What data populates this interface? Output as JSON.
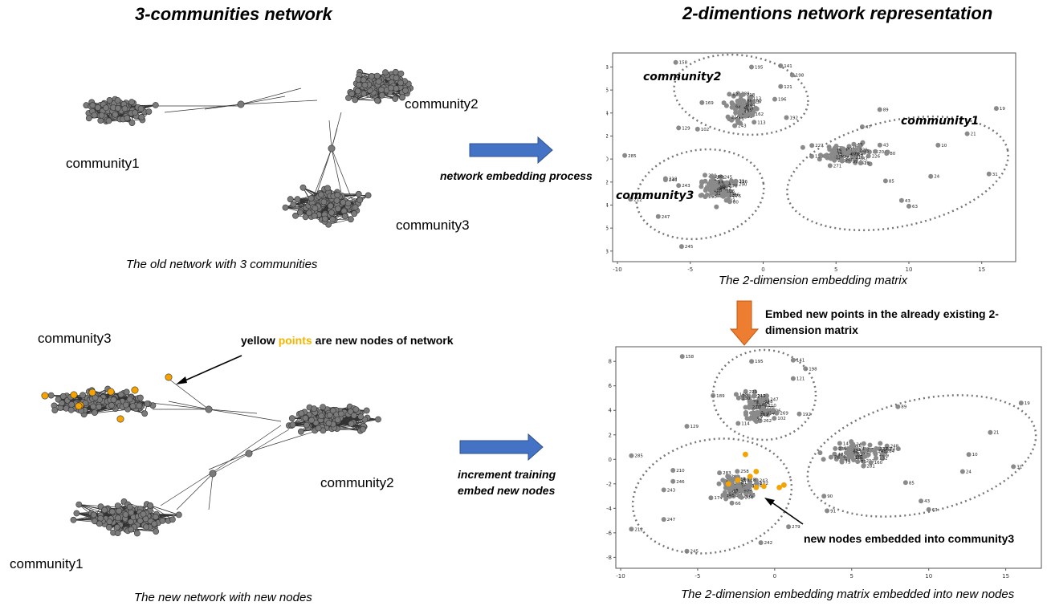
{
  "titles": {
    "left": "3-communities network",
    "right": "2-dimentions network representation"
  },
  "captions": {
    "old_network": "The old network with 3 communities",
    "embedding_matrix": "The 2-dimension embedding matrix",
    "new_network": "The new network with new nodes",
    "new_matrix": "The 2-dimension embedding matrix embedded into new nodes"
  },
  "graph_labels": {
    "top_c1": "community1",
    "top_c2": "community2",
    "top_c3": "community3",
    "bot_c1": "community1",
    "bot_c2": "community2",
    "bot_c3": "community3"
  },
  "plot_labels": {
    "top_c1": "community1",
    "top_c2": "community2",
    "top_c3": "community3"
  },
  "arrows": {
    "embedding": "network embedding process",
    "increment_1": "increment training",
    "increment_2": "embed new nodes",
    "down_1": "Embed new points in the already existing 2-",
    "down_2": "dimension matrix"
  },
  "annotations": {
    "yellow_pre": "yellow ",
    "yellow_word": "points",
    "yellow_post": " are new nodes of network",
    "new_embedded": "new nodes embedded into community3"
  },
  "colors": {
    "node": "#7a7a7a",
    "new_node": "#f4a300",
    "blue_arrow": "#4472c4",
    "orange_arrow": "#ed7d31"
  },
  "chart_data": [
    {
      "type": "scatter",
      "x_ticks": [
        "-10",
        "-5",
        "0",
        "5",
        "10",
        "15"
      ],
      "y_ticks": [
        "8",
        "6",
        "4",
        "2",
        "0",
        "-2",
        "-4",
        "-6",
        "-8"
      ],
      "xlim": [
        -10,
        17
      ],
      "ylim": [
        -8.5,
        8.8
      ],
      "point_labels": [
        {
          "t": "158",
          "x": -6,
          "y": 8.4
        },
        {
          "t": "141",
          "x": 1.2,
          "y": 8.1
        },
        {
          "t": "195",
          "x": -0.8,
          "y": 8
        },
        {
          "t": "198",
          "x": 2,
          "y": 7.3
        },
        {
          "t": "121",
          "x": 1.2,
          "y": 6.3
        },
        {
          "t": "196",
          "x": 0.8,
          "y": 5.2
        },
        {
          "t": "169",
          "x": -4.2,
          "y": 4.9
        },
        {
          "t": "192",
          "x": 1.6,
          "y": 3.6
        },
        {
          "t": "129",
          "x": -5.8,
          "y": 2.7
        },
        {
          "t": "102",
          "x": -4.5,
          "y": 2.6
        },
        {
          "t": "285",
          "x": -9.5,
          "y": 0.3
        },
        {
          "t": "210",
          "x": -6.7,
          "y": -1.7
        },
        {
          "t": "246",
          "x": -6.7,
          "y": -1.8
        },
        {
          "t": "243",
          "x": -5.8,
          "y": -2.3
        },
        {
          "t": "247",
          "x": -7.2,
          "y": -5
        },
        {
          "t": "245",
          "x": -5.6,
          "y": -7.6
        },
        {
          "t": "212",
          "x": -9.1,
          "y": -3.5
        },
        {
          "t": "19",
          "x": 16,
          "y": 4.4
        },
        {
          "t": "21",
          "x": 14,
          "y": 2.2
        },
        {
          "t": "31",
          "x": 15.5,
          "y": -1.3
        },
        {
          "t": "10",
          "x": 12,
          "y": 1.2
        },
        {
          "t": "24",
          "x": 11.5,
          "y": -1.5
        },
        {
          "t": "43",
          "x": 9.5,
          "y": -3.6
        },
        {
          "t": "63",
          "x": 10,
          "y": -4.1
        },
        {
          "t": "89",
          "x": 8,
          "y": 4.3
        },
        {
          "t": "47",
          "x": 6.8,
          "y": 2.8
        },
        {
          "t": "85",
          "x": 8.4,
          "y": -1.9
        }
      ]
    },
    {
      "type": "scatter",
      "x_ticks": [
        "-10",
        "-5",
        "0",
        "5",
        "10",
        "15"
      ],
      "y_ticks": [
        "8",
        "6",
        "4",
        "2",
        "0",
        "-2",
        "-4",
        "-6",
        "-8"
      ],
      "xlim": [
        -10,
        17
      ],
      "ylim": [
        -8.5,
        8.8
      ],
      "point_labels": [
        {
          "t": "158",
          "x": -6,
          "y": 8.4
        },
        {
          "t": "141",
          "x": 1.2,
          "y": 8.1
        },
        {
          "t": "195",
          "x": -1.5,
          "y": 8
        },
        {
          "t": "198",
          "x": 2,
          "y": 7.4
        },
        {
          "t": "121",
          "x": 1.2,
          "y": 6.6
        },
        {
          "t": "189",
          "x": -4,
          "y": 5.2
        },
        {
          "t": "168",
          "x": -2.5,
          "y": 5.3
        },
        {
          "t": "192",
          "x": 1.6,
          "y": 3.7
        },
        {
          "t": "129",
          "x": -5.7,
          "y": 2.7
        },
        {
          "t": "285",
          "x": -9.3,
          "y": 0.3
        },
        {
          "t": "210",
          "x": -6.6,
          "y": -0.9
        },
        {
          "t": "246",
          "x": -6.6,
          "y": -1.8
        },
        {
          "t": "243",
          "x": -7.2,
          "y": -2.5
        },
        {
          "t": "247",
          "x": -7.2,
          "y": -4.9
        },
        {
          "t": "212",
          "x": -9.3,
          "y": -5.7
        },
        {
          "t": "245",
          "x": -5.7,
          "y": -7.5
        },
        {
          "t": "242",
          "x": -0.9,
          "y": -6.8
        },
        {
          "t": "279",
          "x": 0.9,
          "y": -5.5
        },
        {
          "t": "19",
          "x": 16,
          "y": 4.6
        },
        {
          "t": "21",
          "x": 14,
          "y": 2.2
        },
        {
          "t": "31",
          "x": 15.5,
          "y": -0.6
        },
        {
          "t": "10",
          "x": 12.6,
          "y": 0.4
        },
        {
          "t": "24",
          "x": 12.2,
          "y": -1
        },
        {
          "t": "43",
          "x": 9.5,
          "y": -3.4
        },
        {
          "t": "63",
          "x": 10,
          "y": -4.1
        },
        {
          "t": "89",
          "x": 8,
          "y": 4.3
        },
        {
          "t": "85",
          "x": 8.5,
          "y": -1.9
        },
        {
          "t": "91",
          "x": 3.4,
          "y": -4.2
        },
        {
          "t": "90",
          "x": 3.2,
          "y": -3
        }
      ]
    }
  ]
}
